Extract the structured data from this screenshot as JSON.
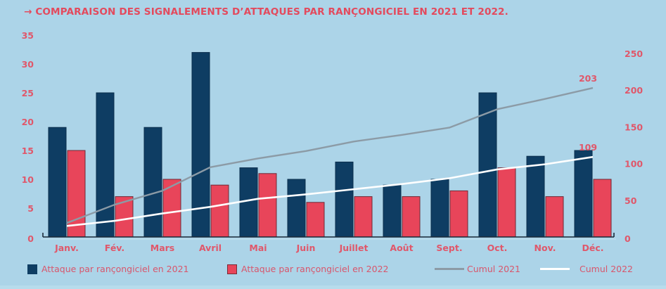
{
  "chart_data": {
    "type": "bar",
    "title": "→ COMPARAISON DES SIGNALEMENTS D’ATTAQUES PAR RANÇONGICIEL EN 2021 ET 2022.",
    "categories": [
      "Janv.",
      "Fév.",
      "Mars",
      "Avril",
      "Mai",
      "Juin",
      "Juillet",
      "Août",
      "Sept.",
      "Oct.",
      "Nov.",
      "Déc."
    ],
    "series": [
      {
        "name": "Attaque par rançongiciel en 2021",
        "type": "bar",
        "axis": "left",
        "color": "#0e3d63",
        "values": [
          19,
          25,
          19,
          32,
          12,
          10,
          13,
          9,
          10,
          25,
          14,
          15
        ]
      },
      {
        "name": "Attaque par rançongiciel en 2022",
        "type": "bar",
        "axis": "left",
        "color": "#e8455a",
        "values": [
          15,
          7,
          10,
          9,
          11,
          6,
          7,
          7,
          8,
          12,
          7,
          10
        ]
      },
      {
        "name": "Cumul 2021",
        "type": "line",
        "axis": "right",
        "color": "#8c9ba6",
        "values": [
          19,
          44,
          63,
          95,
          107,
          117,
          130,
          139,
          149,
          174,
          188,
          203
        ]
      },
      {
        "name": "Cumul 2022",
        "type": "line",
        "axis": "right",
        "color": "#ffffff",
        "values": [
          15,
          22,
          32,
          41,
          52,
          58,
          65,
          72,
          80,
          92,
          99,
          109
        ]
      }
    ],
    "left_axis": {
      "ylim": [
        0,
        35
      ],
      "ticks": [
        "0",
        "5",
        "10",
        "15",
        "20",
        "25",
        "30",
        "35"
      ]
    },
    "right_axis": {
      "ylim": [
        0,
        250
      ],
      "ticks": [
        "0",
        "50",
        "100",
        "150",
        "200",
        "250"
      ]
    },
    "annotations": [
      {
        "series": "Cumul 2021",
        "category": "Déc.",
        "text": "203"
      },
      {
        "series": "Cumul 2022",
        "category": "Déc.",
        "text": "109"
      }
    ],
    "xlabel": "",
    "ylabel": "",
    "grid": false,
    "legend_position": "bottom"
  },
  "legend": [
    {
      "label": "Attaque par rançongiciel en 2021",
      "kind": "swatch",
      "color": "#0e3d63"
    },
    {
      "label": "Attaque par rançongiciel en 2022",
      "kind": "swatch",
      "color": "#e8455a"
    },
    {
      "label": "Cumul 2021",
      "kind": "line",
      "color": "#8c9ba6"
    },
    {
      "label": "Cumul 2022",
      "kind": "line",
      "color": "#ffffff"
    }
  ]
}
